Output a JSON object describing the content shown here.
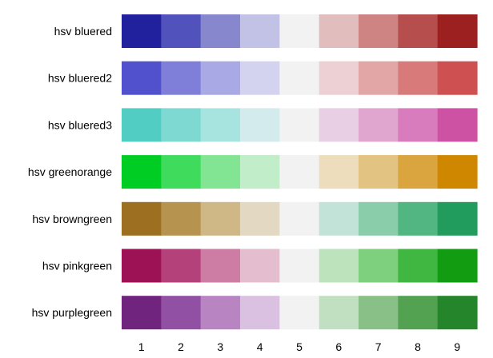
{
  "chart_data": {
    "type": "heatmap",
    "title": "",
    "xlabel": "",
    "ylabel": "",
    "x_ticks": [
      "1",
      "2",
      "3",
      "4",
      "5",
      "6",
      "7",
      "8",
      "9"
    ],
    "rows": [
      {
        "label": "hsv bluered",
        "colors": [
          "#21219E",
          "#5252BC",
          "#8787CE",
          "#C2C2E6",
          "#F2F2F2",
          "#E2BDBD",
          "#CF8484",
          "#B74E4E",
          "#9C2020"
        ]
      },
      {
        "label": "hsv bluered2",
        "colors": [
          "#5151CE",
          "#7F7FDA",
          "#A9A9E6",
          "#D3D3EF",
          "#F2F2F2",
          "#EDD0D4",
          "#E3A6A6",
          "#D97A7A",
          "#CE5050"
        ]
      },
      {
        "label": "hsv bluered3",
        "colors": [
          "#52CDC4",
          "#7DD9D2",
          "#A8E4DF",
          "#D3EBEC",
          "#F2F2F2",
          "#E8CFE3",
          "#E0A6CF",
          "#D97CBE",
          "#CE52A4"
        ]
      },
      {
        "label": "hsv greenorange",
        "colors": [
          "#00CD24",
          "#3FDB5C",
          "#81E593",
          "#C2EDC9",
          "#F2F2F2",
          "#EDDDBD",
          "#E3C381",
          "#DAA43E",
          "#CF8700"
        ]
      },
      {
        "label": "hsv browngreen",
        "colors": [
          "#9C7020",
          "#B79350",
          "#CFB786",
          "#E3D9C2",
          "#F2F2F2",
          "#C2E3D7",
          "#8ACDAA",
          "#52B683",
          "#219C5D"
        ]
      },
      {
        "label": "hsv pinkgreen",
        "colors": [
          "#9C1255",
          "#B5417A",
          "#CD7DA4",
          "#E4BDCF",
          "#F2F2F2",
          "#BDE3BD",
          "#7ECF7E",
          "#40B740",
          "#129C12"
        ]
      },
      {
        "label": "hsv purplegreen",
        "colors": [
          "#71247E",
          "#9150A3",
          "#B884C1",
          "#DAC1E2",
          "#F2F2F2",
          "#C1DFC1",
          "#88C088",
          "#52A252",
          "#25852A"
        ]
      }
    ]
  }
}
